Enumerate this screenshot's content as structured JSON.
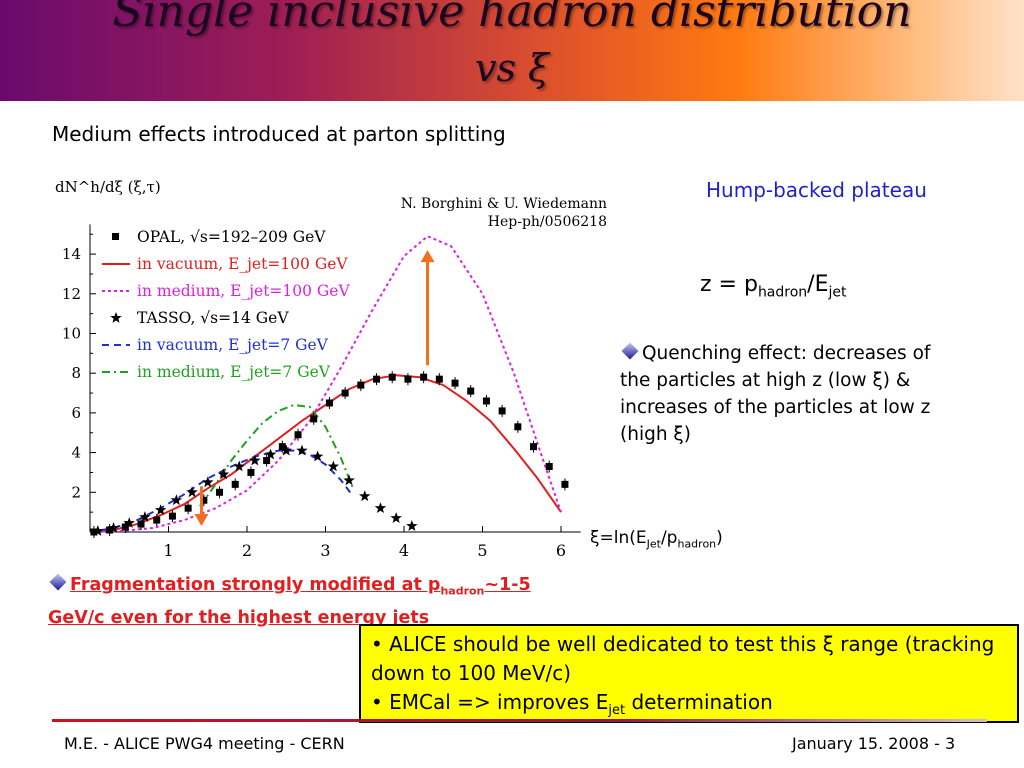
{
  "slide": {
    "title_line1": "Single inclusive hadron distribution",
    "title_line2": "vs ξ",
    "subtitle": "Medium effects introduced at parton splitting",
    "hump_label": "Hump-backed plateau",
    "z_definition": {
      "prefix": "z = p",
      "sub1": "hadron",
      "mid": "/E",
      "sub2": "jet"
    },
    "quenching_text": "Quenching effect: decreases of the particles at high z (low ξ) & increases of the particles at low z (high ξ)",
    "xi_label": {
      "prefix": "ξ=ln(E",
      "sub1": "Jet",
      "mid": "/p",
      "sub2": "hadron",
      "suffix": ")"
    },
    "fragmentation_note": {
      "prefix": "Fragmentation strongly modified at p",
      "sub": "hadron",
      "suffix": "~1-5 GeV/c even for the highest energy jets"
    },
    "yellow_box": {
      "line1": "ALICE should be well dedicated to test this ξ range (tracking down to 100 MeV/c)",
      "line2_prefix": "EMCal => improves E",
      "line2_sub": "jet",
      "line2_suffix": " determination"
    },
    "footer_left": "M.E. - ALICE PWG4 meeting - CERN",
    "footer_right": "January 15. 2008 - 3",
    "colors": {
      "hump": "#1f1fcf",
      "fragmentation": "#e02020",
      "box": "#ffff00",
      "arrow": "#f07020"
    },
    "bullet_icon": "diamond-bullet-icon"
  },
  "chart_data": {
    "type": "line",
    "ylabel": "dN^h/dξ (ξ,τ)",
    "citation": [
      "N. Borghini & U. Wiedemann",
      "Hep-ph/0506218"
    ],
    "x_ticks": [
      "1",
      "2",
      "3",
      "4",
      "5",
      "6"
    ],
    "y_ticks": [
      "2",
      "4",
      "6",
      "8",
      "10",
      "12",
      "14"
    ],
    "xlim": [
      0,
      6.25
    ],
    "ylim": [
      0,
      15.5
    ],
    "legend_position": "top-left",
    "legend": [
      {
        "label": "OPAL, √s=192–209 GeV",
        "marker": "square",
        "color": "#000000"
      },
      {
        "label": "in vacuum, E_jet=100 GeV",
        "style": "solid",
        "color": "#e02020"
      },
      {
        "label": "in medium, E_jet=100 GeV",
        "style": "dotted",
        "color": "#e020e0"
      },
      {
        "label": "TASSO, √s=14 GeV",
        "marker": "star",
        "color": "#000000"
      },
      {
        "label": "in vacuum, E_jet=7 GeV",
        "style": "dashed",
        "color": "#2030d0"
      },
      {
        "label": "in medium, E_jet=7 GeV",
        "style": "dashdot",
        "color": "#20a020"
      }
    ],
    "series": [
      {
        "name": "OPAL, √s=192–209 GeV",
        "kind": "points",
        "marker": "square",
        "color": "#000000",
        "x": [
          0.05,
          0.25,
          0.45,
          0.65,
          0.85,
          1.05,
          1.25,
          1.45,
          1.65,
          1.85,
          2.05,
          2.25,
          2.45,
          2.65,
          2.85,
          3.05,
          3.25,
          3.45,
          3.65,
          3.85,
          4.05,
          4.25,
          4.45,
          4.65,
          4.85,
          5.05,
          5.25,
          5.45,
          5.65,
          5.85,
          6.05
        ],
        "y": [
          0.0,
          0.1,
          0.25,
          0.4,
          0.6,
          0.8,
          1.2,
          1.6,
          2.0,
          2.4,
          3.0,
          3.6,
          4.3,
          4.9,
          5.7,
          6.5,
          7.0,
          7.4,
          7.7,
          7.8,
          7.7,
          7.8,
          7.7,
          7.5,
          7.1,
          6.6,
          6.1,
          5.3,
          4.3,
          3.3,
          2.4
        ]
      },
      {
        "name": "in vacuum, E_jet=100 GeV",
        "kind": "line",
        "style": "solid",
        "color": "#e02020",
        "x": [
          0.0,
          0.3,
          0.6,
          0.9,
          1.2,
          1.5,
          1.8,
          2.1,
          2.4,
          2.7,
          3.0,
          3.3,
          3.6,
          3.9,
          4.2,
          4.5,
          4.8,
          5.1,
          5.4,
          5.7,
          6.0
        ],
        "y": [
          0.0,
          0.1,
          0.4,
          0.85,
          1.4,
          2.2,
          2.9,
          3.8,
          4.7,
          5.6,
          6.4,
          7.2,
          7.7,
          7.9,
          7.8,
          7.4,
          6.6,
          5.6,
          4.2,
          2.7,
          1.0
        ]
      },
      {
        "name": "in medium, E_jet=100 GeV",
        "kind": "line",
        "style": "dotted",
        "color": "#e020e0",
        "x": [
          0.0,
          0.4,
          0.8,
          1.2,
          1.6,
          2.0,
          2.4,
          2.8,
          3.2,
          3.6,
          4.0,
          4.3,
          4.6,
          5.0,
          5.4,
          5.8,
          6.0
        ],
        "y": [
          0.0,
          0.05,
          0.2,
          0.6,
          1.2,
          2.1,
          3.6,
          5.6,
          8.3,
          11.2,
          13.9,
          14.9,
          14.4,
          12.0,
          8.0,
          3.3,
          1.0
        ]
      },
      {
        "name": "TASSO, √s=14 GeV",
        "kind": "points",
        "marker": "star",
        "color": "#000000",
        "x": [
          0.1,
          0.3,
          0.5,
          0.7,
          0.9,
          1.1,
          1.3,
          1.5,
          1.7,
          1.9,
          2.1,
          2.3,
          2.5,
          2.7,
          2.9,
          3.1,
          3.3,
          3.5,
          3.7,
          3.9,
          4.1
        ],
        "y": [
          0.05,
          0.2,
          0.45,
          0.75,
          1.1,
          1.6,
          2.0,
          2.5,
          2.9,
          3.3,
          3.6,
          3.9,
          4.1,
          4.1,
          3.8,
          3.3,
          2.6,
          1.8,
          1.2,
          0.7,
          0.3
        ]
      },
      {
        "name": "in vacuum, E_jet=7 GeV",
        "kind": "line",
        "style": "dashed",
        "color": "#2030d0",
        "x": [
          0.0,
          0.3,
          0.6,
          0.9,
          1.2,
          1.5,
          1.8,
          2.1,
          2.4,
          2.6,
          2.8,
          3.0,
          3.2,
          3.35
        ],
        "y": [
          0.0,
          0.2,
          0.6,
          1.2,
          1.9,
          2.7,
          3.3,
          3.8,
          4.1,
          4.1,
          3.9,
          3.4,
          2.6,
          1.8
        ]
      },
      {
        "name": "in medium, E_jet=7 GeV",
        "kind": "line",
        "style": "dashdot",
        "color": "#20a020",
        "x": [
          1.4,
          1.6,
          1.8,
          2.0,
          2.2,
          2.4,
          2.6,
          2.8,
          3.0,
          3.2,
          3.35
        ],
        "y": [
          1.3,
          2.4,
          3.6,
          4.6,
          5.5,
          6.1,
          6.4,
          6.3,
          5.3,
          3.7,
          2.2
        ]
      }
    ],
    "arrows": [
      {
        "x": 4.3,
        "y_from": 8.4,
        "y_to": 14.2,
        "color": "#f07020"
      },
      {
        "x": 1.42,
        "y_from": 2.3,
        "y_to": 0.3,
        "color": "#f07020"
      }
    ]
  }
}
